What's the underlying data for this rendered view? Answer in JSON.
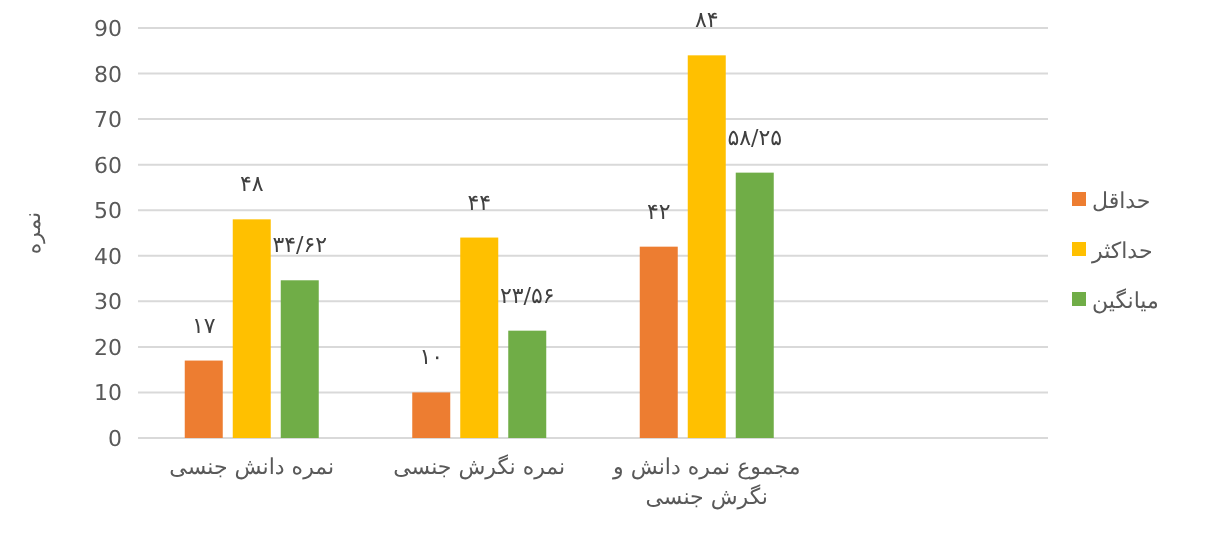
{
  "chart_data": {
    "type": "bar",
    "ylabel": "نمره",
    "categories": [
      "نمره دانش جنسی",
      "نمره نگرش جنسی",
      "مجموع نمره دانش و نگرش جنسی",
      null
    ],
    "series": [
      {
        "name": "حداقل",
        "color": "#ed7d31",
        "values": [
          17,
          10,
          42,
          null
        ],
        "value_labels": [
          "۱۷",
          "۱۰",
          "۴۲",
          null
        ]
      },
      {
        "name": "حداکثر",
        "color": "#ffc000",
        "values": [
          48,
          44,
          84,
          null
        ],
        "value_labels": [
          "۴۸",
          "۴۴",
          "۸۴",
          null
        ]
      },
      {
        "name": "میانگین",
        "color": "#70ad47",
        "values": [
          34.62,
          23.56,
          58.25,
          null
        ],
        "value_labels": [
          "۳۴/۶۲",
          "۲۳/۵۶",
          "۵۸/۲۵",
          null
        ]
      }
    ],
    "ylim": [
      0,
      90
    ],
    "yticks": [
      0,
      10,
      20,
      30,
      40,
      50,
      60,
      70,
      80,
      90
    ],
    "grid": "y",
    "legend": "right"
  }
}
